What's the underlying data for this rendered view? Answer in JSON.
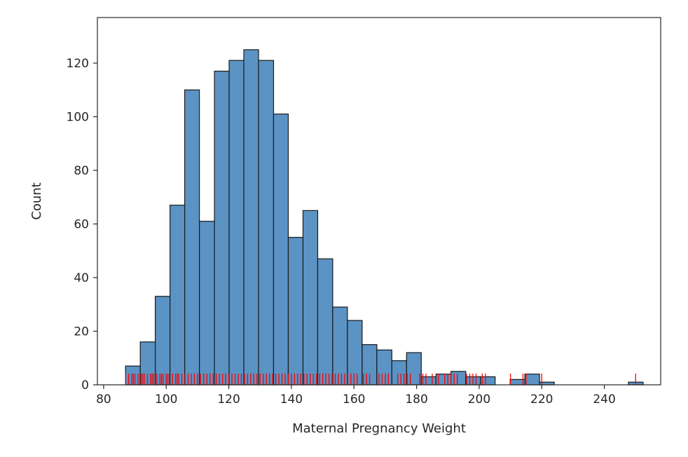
{
  "chart_data": {
    "type": "bar",
    "title": "",
    "xlabel": "Maternal Pregnancy Weight",
    "ylabel": "Count",
    "xlim": [
      78,
      258
    ],
    "ylim": [
      0,
      137
    ],
    "grid": false,
    "bar_color": "#5b93c4",
    "edge_color": "#1a1a1a",
    "rug_color": "#ff0000",
    "x_ticks": [
      80,
      100,
      120,
      140,
      160,
      180,
      200,
      220,
      240
    ],
    "y_ticks": [
      0,
      20,
      40,
      60,
      80,
      100,
      120
    ],
    "bin_edges": [
      87.0,
      91.7,
      96.5,
      101.2,
      105.9,
      110.6,
      115.4,
      120.1,
      124.8,
      129.5,
      134.3,
      139.0,
      143.7,
      148.4,
      153.2,
      157.9,
      162.6,
      167.3,
      172.1,
      176.8,
      181.5,
      186.2,
      191.0,
      195.7,
      200.4,
      205.1,
      209.9,
      214.6,
      219.3,
      224.0,
      228.8,
      233.5,
      238.2,
      242.9,
      247.7,
      252.4
    ],
    "counts": [
      7,
      16,
      33,
      67,
      110,
      61,
      117,
      121,
      125,
      121,
      101,
      55,
      65,
      47,
      29,
      24,
      15,
      13,
      9,
      12,
      3,
      4,
      5,
      3,
      3,
      0,
      2,
      4,
      1,
      0,
      0,
      0,
      0,
      0,
      1
    ],
    "rug": [
      87,
      88,
      89,
      89.5,
      90,
      91,
      92,
      92.5,
      93,
      94,
      95,
      95.5,
      96,
      97,
      98,
      98.5,
      99,
      100,
      100.5,
      101,
      102,
      103,
      103.5,
      104,
      105,
      106,
      107,
      108,
      109,
      110,
      111,
      112,
      113,
      114,
      115,
      116,
      117,
      118,
      119,
      120,
      121,
      122,
      123,
      124,
      125,
      126,
      127,
      128,
      129,
      130,
      131,
      132,
      133,
      134,
      135,
      136,
      137,
      138,
      139,
      140,
      141,
      142,
      143,
      144,
      145,
      146,
      147,
      148,
      149,
      150,
      151,
      152,
      153,
      154,
      155,
      156,
      157,
      158,
      159,
      160,
      161,
      163,
      164,
      165,
      168,
      169,
      170,
      171,
      174,
      175,
      176,
      177,
      178,
      181,
      182,
      183,
      185,
      187,
      189,
      190,
      191,
      192,
      193,
      196,
      197,
      198,
      199,
      201,
      202,
      210,
      214,
      215,
      220,
      250
    ]
  }
}
